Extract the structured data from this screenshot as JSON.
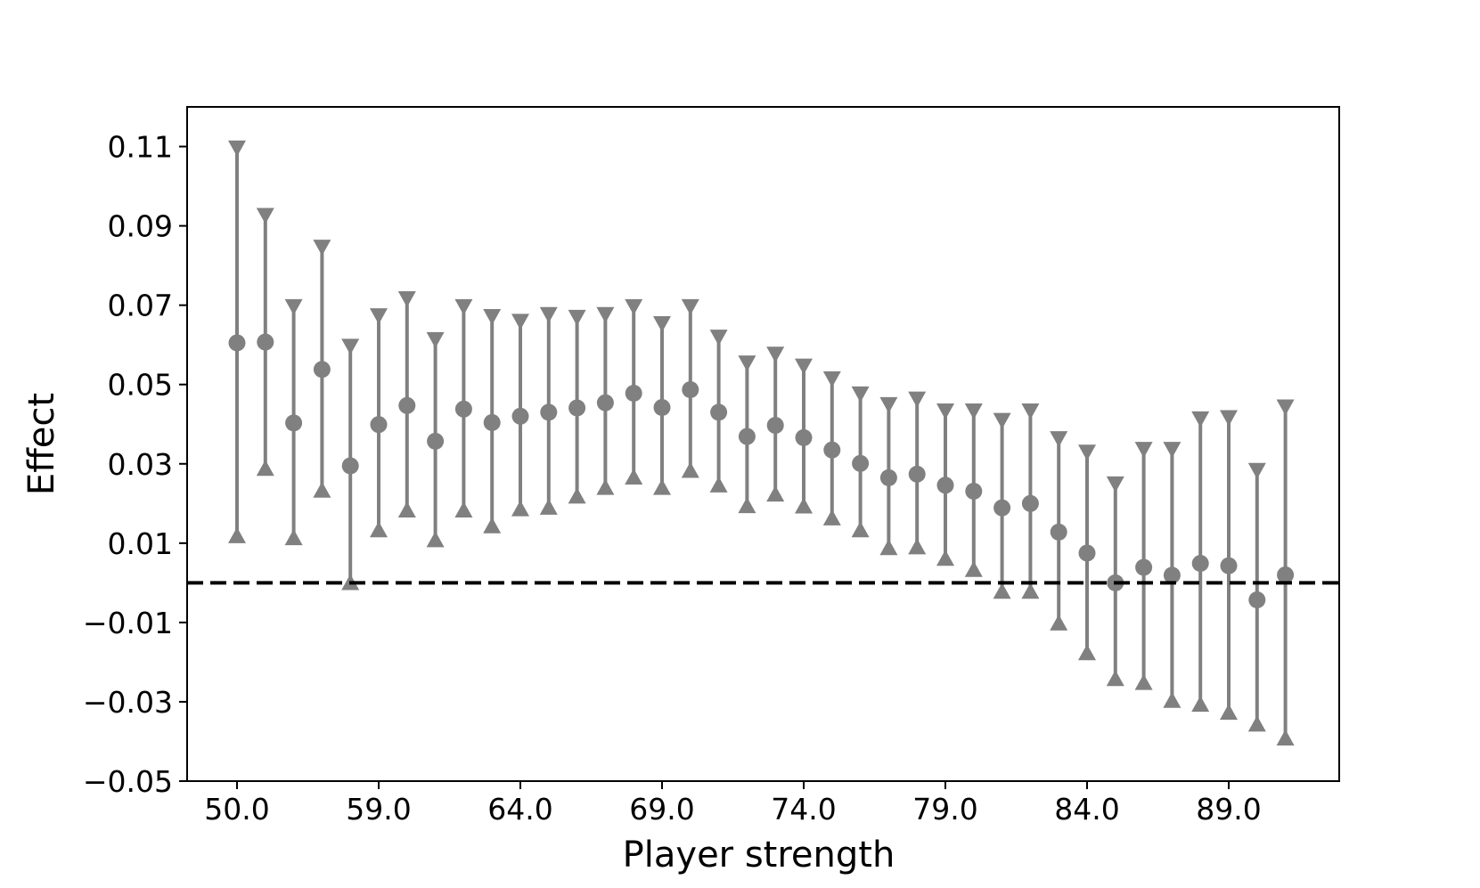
{
  "chart_data": {
    "type": "scatter",
    "title": "",
    "xlabel": "Player strength",
    "ylabel": "Effect",
    "ylim": [
      -0.05,
      0.12
    ],
    "x_tick_labels": [
      "50.0",
      "59.0",
      "64.0",
      "69.0",
      "74.0",
      "79.0",
      "84.0",
      "89.0"
    ],
    "x_tick_positions": [
      0,
      5,
      10,
      15,
      20,
      25,
      30,
      35
    ],
    "y_ticks": [
      -0.05,
      -0.03,
      -0.01,
      0.01,
      0.03,
      0.05,
      0.07,
      0.09,
      0.11
    ],
    "y_tick_labels": [
      "−0.05",
      "−0.03",
      "−0.01",
      "0.01",
      "0.03",
      "0.05",
      "0.07",
      "0.09",
      "0.11"
    ],
    "reference_line": {
      "y": 0.0,
      "style": "dashed",
      "color": "#000000"
    },
    "marker_color": "#808080",
    "grid": false,
    "series": [
      {
        "x": [
          0,
          1,
          2,
          3,
          4,
          5,
          6,
          7,
          8,
          9,
          10,
          11,
          12,
          13,
          14,
          15,
          16,
          17,
          18,
          19,
          20,
          21,
          22,
          23,
          24,
          25,
          26,
          27,
          28,
          29,
          30,
          31,
          32,
          33,
          34,
          35,
          36,
          37
        ],
        "estimate": [
          0.0605,
          0.0607,
          0.0403,
          0.0538,
          0.0295,
          0.0399,
          0.0447,
          0.0357,
          0.0438,
          0.0404,
          0.042,
          0.043,
          0.0441,
          0.0454,
          0.0478,
          0.0442,
          0.0487,
          0.043,
          0.0369,
          0.0397,
          0.0366,
          0.0335,
          0.0301,
          0.0265,
          0.0274,
          0.0246,
          0.0231,
          0.0189,
          0.02,
          0.0128,
          0.0075,
          0.0,
          0.0039,
          0.0019,
          0.0049,
          0.0043,
          -0.0043,
          0.002
        ],
        "lower": [
          0.012,
          0.029,
          0.0115,
          0.0235,
          0.0002,
          0.0135,
          0.0185,
          0.011,
          0.0185,
          0.0145,
          0.0188,
          0.0192,
          0.022,
          0.0242,
          0.0268,
          0.0242,
          0.0285,
          0.0248,
          0.0196,
          0.0225,
          0.0195,
          0.0165,
          0.0135,
          0.009,
          0.0092,
          0.0063,
          0.0035,
          -0.002,
          -0.002,
          -0.01,
          -0.0175,
          -0.024,
          -0.025,
          -0.0295,
          -0.0305,
          -0.0325,
          -0.0355,
          -0.039
        ],
        "upper": [
          0.1095,
          0.0925,
          0.0695,
          0.0845,
          0.0595,
          0.0672,
          0.0715,
          0.0612,
          0.0695,
          0.067,
          0.0658,
          0.0675,
          0.0668,
          0.0675,
          0.0695,
          0.0652,
          0.0695,
          0.0618,
          0.0553,
          0.0575,
          0.0545,
          0.0513,
          0.0475,
          0.0448,
          0.0462,
          0.0432,
          0.0432,
          0.0408,
          0.0432,
          0.0362,
          0.0328,
          0.0248,
          0.0335,
          0.0335,
          0.0412,
          0.0415,
          0.0282,
          0.0442
        ]
      }
    ]
  }
}
